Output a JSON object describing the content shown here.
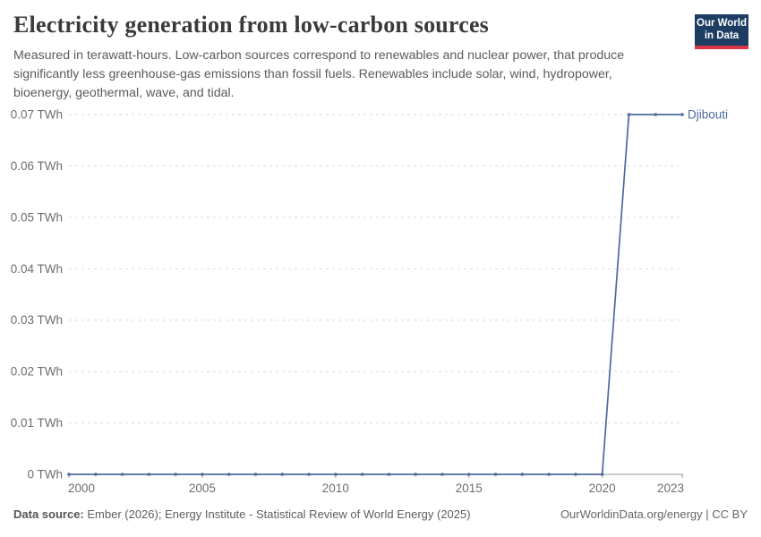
{
  "logo": {
    "line1": "Our World",
    "line2": "in Data",
    "bg_color": "#1d3d63",
    "accent_color": "#dc3545"
  },
  "footer": {
    "source_label": "Data source:",
    "source_text": " Ember (2026); Energy Institute - Statistical Review of World Energy (2025)",
    "credit": "OurWorldinData.org/energy | CC BY"
  },
  "chart_data": {
    "type": "line",
    "title": "Electricity generation from low-carbon sources",
    "subtitle": "Measured in terawatt-hours. Low-carbon sources correspond to renewables and nuclear power, that produce significantly less greenhouse-gas emissions than fossil fuels. Renewables include solar, wind, hydropower, bioenergy, geothermal, wave, and tidal.",
    "unit": "TWh",
    "x": [
      2000,
      2001,
      2002,
      2003,
      2004,
      2005,
      2006,
      2007,
      2008,
      2009,
      2010,
      2011,
      2012,
      2013,
      2014,
      2015,
      2016,
      2017,
      2018,
      2019,
      2020,
      2021,
      2022,
      2023
    ],
    "series": [
      {
        "name": "Djibouti",
        "color": "#4C6A9C",
        "values": [
          0,
          0,
          0,
          0,
          0,
          0,
          0,
          0,
          0,
          0,
          0,
          0,
          0,
          0,
          0,
          0,
          0,
          0,
          0,
          0,
          0,
          0.07,
          0.07,
          0.07
        ]
      }
    ],
    "xlabel": "",
    "ylabel": "",
    "ylim": [
      0,
      0.07
    ],
    "yticks": [
      {
        "v": 0,
        "label": "0 TWh"
      },
      {
        "v": 0.01,
        "label": "0.01 TWh"
      },
      {
        "v": 0.02,
        "label": "0.02 TWh"
      },
      {
        "v": 0.03,
        "label": "0.03 TWh"
      },
      {
        "v": 0.04,
        "label": "0.04 TWh"
      },
      {
        "v": 0.05,
        "label": "0.05 TWh"
      },
      {
        "v": 0.06,
        "label": "0.06 TWh"
      },
      {
        "v": 0.07,
        "label": "0.07 TWh"
      }
    ],
    "xticks": [
      {
        "v": 2000,
        "label": "2000"
      },
      {
        "v": 2005,
        "label": "2005"
      },
      {
        "v": 2010,
        "label": "2010"
      },
      {
        "v": 2015,
        "label": "2015"
      },
      {
        "v": 2020,
        "label": "2020"
      },
      {
        "v": 2023,
        "label": "2023"
      }
    ],
    "grid": "horizontal-dashed",
    "legend_position": "end-of-line-label",
    "colors": {
      "grid": "#dadada",
      "axis": "#9a9a9a",
      "tick_text": "#6e6e6e",
      "line": "#4C6A9C"
    }
  }
}
